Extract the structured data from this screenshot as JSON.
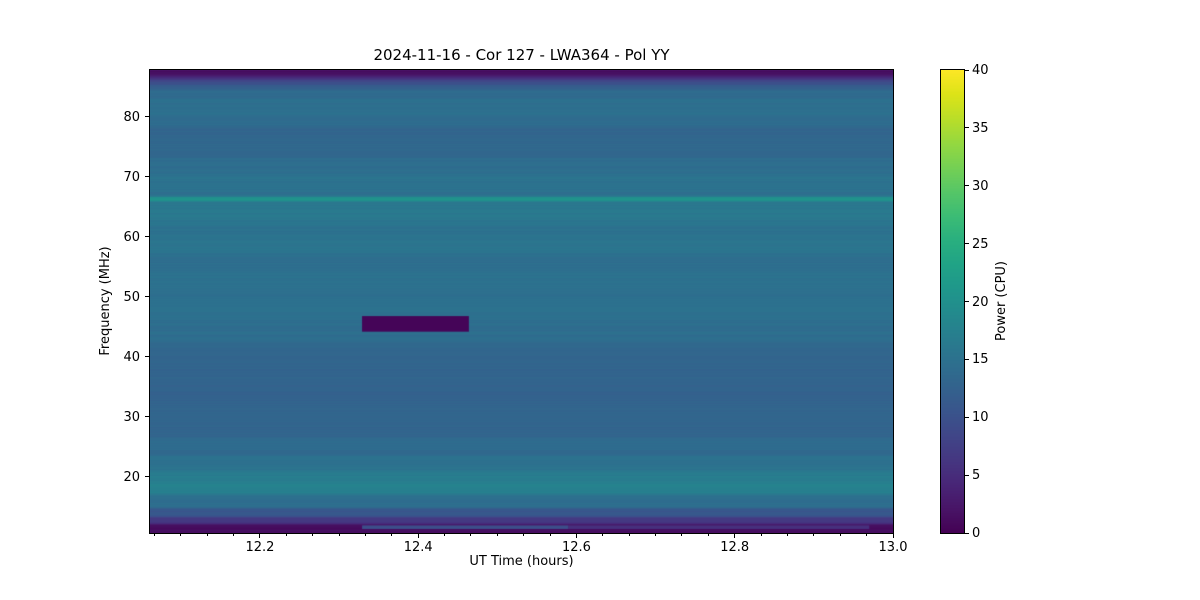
{
  "figure": {
    "title": "2024-11-16 - Cor 127 - LWA364 - Pol YY",
    "xlabel": "UT Time (hours)",
    "ylabel": "Frequency (MHz)",
    "colorbar_label": "Power (CPU)"
  },
  "chart_data": {
    "type": "heatmap",
    "title": "2024-11-16 - Cor 127 - LWA364 - Pol YY",
    "xlabel": "UT Time (hours)",
    "ylabel": "Frequency (MHz)",
    "colorbar_label": "Power (CPU)",
    "colormap": "viridis",
    "legend": "none",
    "grid": false,
    "xlim": [
      12.061,
      13.0
    ],
    "ylim": [
      10.63,
      87.83
    ],
    "clim": [
      0,
      40
    ],
    "xticks": [
      12.2,
      12.4,
      12.6,
      12.8,
      13.0
    ],
    "xtick_labels": [
      "12.2",
      "12.4",
      "12.6",
      "12.8",
      "13.0"
    ],
    "minor_xtick_interval_hours": 0.0333333,
    "yticks": [
      20,
      30,
      40,
      50,
      60,
      70,
      80
    ],
    "ytick_labels": [
      "20",
      "30",
      "40",
      "50",
      "60",
      "70",
      "80"
    ],
    "cbar_ticks": [
      0,
      5,
      10,
      15,
      20,
      25,
      30,
      35,
      40
    ],
    "cbar_tick_labels": [
      "0",
      "5",
      "10",
      "15",
      "20",
      "25",
      "30",
      "35",
      "40"
    ],
    "description": "Dynamic radio spectrum: power vs UT time and frequency, nearly constant in time with horizontal frequency bands; dark low-power bands at the top and bottom band edges, a bright narrow line near 66 MHz, and a blanked (zero-power) rectangle near 44-47 MHz between 12.33 and 12.46 hours.",
    "spectrum_bands_power_vs_freq": [
      {
        "f_hi": 87.83,
        "f_lo": 86.8,
        "power": 1.5
      },
      {
        "f_hi": 86.8,
        "f_lo": 86.2,
        "power": 5.0
      },
      {
        "f_hi": 86.2,
        "f_lo": 85.3,
        "power": 9.0
      },
      {
        "f_hi": 85.3,
        "f_lo": 84.5,
        "power": 12.0
      },
      {
        "f_hi": 84.5,
        "f_lo": 82.9,
        "power": 14.3
      },
      {
        "f_hi": 82.9,
        "f_lo": 82.4,
        "power": 15.2
      },
      {
        "f_hi": 82.4,
        "f_lo": 80.9,
        "power": 14.2
      },
      {
        "f_hi": 80.9,
        "f_lo": 80.5,
        "power": 15.0
      },
      {
        "f_hi": 80.5,
        "f_lo": 78.1,
        "power": 14.2
      },
      {
        "f_hi": 78.1,
        "f_lo": 73.2,
        "power": 13.4
      },
      {
        "f_hi": 73.2,
        "f_lo": 70.1,
        "power": 14.5
      },
      {
        "f_hi": 70.1,
        "f_lo": 66.6,
        "power": 15.0
      },
      {
        "f_hi": 66.6,
        "f_lo": 66.0,
        "power": 21.5
      },
      {
        "f_hi": 66.0,
        "f_lo": 62.0,
        "power": 15.8
      },
      {
        "f_hi": 62.0,
        "f_lo": 57.0,
        "power": 15.2
      },
      {
        "f_hi": 57.0,
        "f_lo": 52.0,
        "power": 14.7
      },
      {
        "f_hi": 52.0,
        "f_lo": 47.5,
        "power": 14.9
      },
      {
        "f_hi": 47.5,
        "f_lo": 42.5,
        "power": 14.5
      },
      {
        "f_hi": 42.5,
        "f_lo": 38.0,
        "power": 13.2
      },
      {
        "f_hi": 38.0,
        "f_lo": 30.5,
        "power": 12.6
      },
      {
        "f_hi": 30.5,
        "f_lo": 26.5,
        "power": 13.1
      },
      {
        "f_hi": 26.5,
        "f_lo": 23.5,
        "power": 13.7
      },
      {
        "f_hi": 23.5,
        "f_lo": 21.0,
        "power": 15.2
      },
      {
        "f_hi": 21.0,
        "f_lo": 19.0,
        "power": 16.5
      },
      {
        "f_hi": 19.0,
        "f_lo": 17.0,
        "power": 17.5
      },
      {
        "f_hi": 17.0,
        "f_lo": 14.8,
        "power": 14.5
      },
      {
        "f_hi": 14.8,
        "f_lo": 13.3,
        "power": 10.5
      },
      {
        "f_hi": 13.3,
        "f_lo": 12.2,
        "power": 6.5
      },
      {
        "f_hi": 12.2,
        "f_lo": 10.63,
        "power": 1.5
      }
    ],
    "features": [
      {
        "name": "blanked-rectangle",
        "t0": 12.329,
        "t1": 12.464,
        "f_lo": 44.2,
        "f_hi": 46.8,
        "power": 0.4
      },
      {
        "name": "low-freq-line-bright",
        "t0": 12.329,
        "t1": 12.59,
        "f_lo": 11.3,
        "f_hi": 11.9,
        "power": 9.5
      },
      {
        "name": "low-freq-line-faint",
        "t0": 12.59,
        "t1": 12.97,
        "f_lo": 11.3,
        "f_hi": 11.9,
        "power": 5.5
      }
    ],
    "colormap_stops": [
      "#440154",
      "#481567",
      "#482677",
      "#453781",
      "#404688",
      "#39558c",
      "#33638d",
      "#2d708e",
      "#287d8e",
      "#238a8d",
      "#1f978b",
      "#20a386",
      "#29af7f",
      "#3cbc75",
      "#56c667",
      "#75d054",
      "#95d840",
      "#bade28",
      "#dde318",
      "#fde725"
    ]
  }
}
